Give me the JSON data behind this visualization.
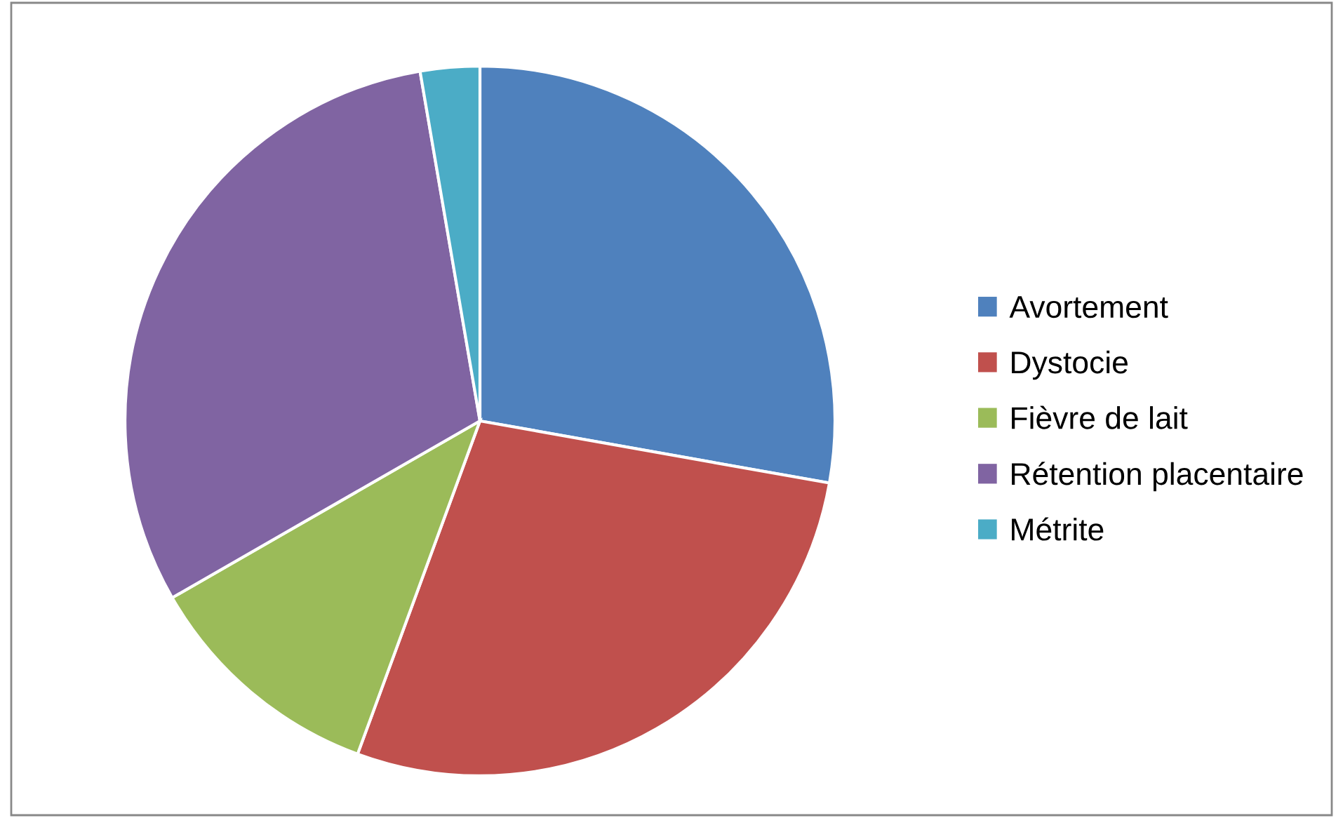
{
  "chart_data": {
    "type": "pie",
    "categories": [
      "Avortement",
      "Dystocie",
      "Fièvre de lait",
      "Rétention placentaire",
      "Métrite"
    ],
    "values": [
      27.8,
      27.8,
      11.1,
      30.6,
      2.7
    ],
    "colors": [
      "#4f81bd",
      "#c0504d",
      "#9bbb59",
      "#8064a2",
      "#4bacc6"
    ],
    "legend": "right"
  }
}
